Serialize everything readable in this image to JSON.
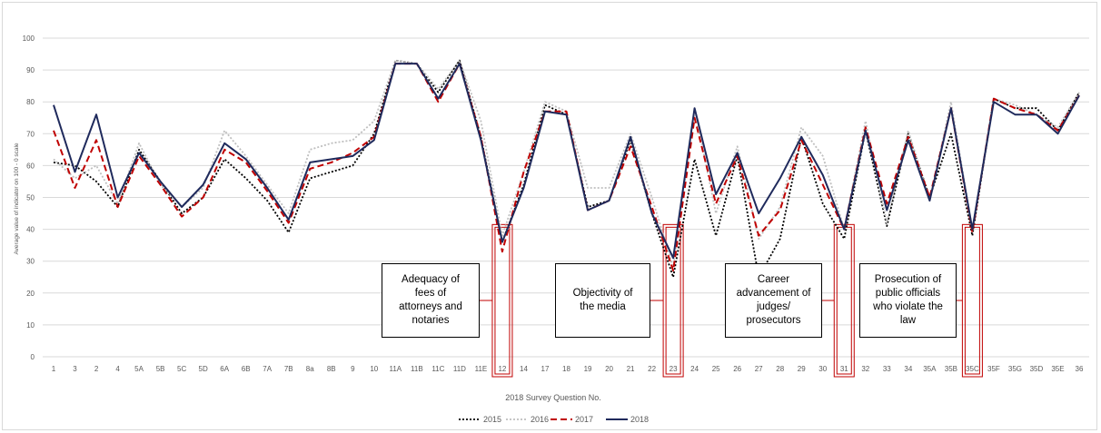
{
  "chart_data": {
    "type": "line",
    "title": "",
    "xlabel": "2018 Survey Question No.",
    "ylabel": "Average value of indicator on 100 - 0 scale",
    "ylim": [
      0,
      100
    ],
    "yticks": [
      0,
      10,
      20,
      30,
      40,
      50,
      60,
      70,
      80,
      90,
      100
    ],
    "grid": "horizontal",
    "legend_position": "bottom",
    "categories": [
      "1",
      "3",
      "2",
      "4",
      "5A",
      "5B",
      "5C",
      "5D",
      "6A",
      "6B",
      "7A",
      "7B",
      "8a",
      "8B",
      "9",
      "10",
      "11A",
      "11B",
      "11C",
      "11D",
      "11E",
      "12",
      "14",
      "17",
      "18",
      "19",
      "20",
      "21",
      "22",
      "23",
      "24",
      "25",
      "26",
      "27",
      "28",
      "29",
      "30",
      "31",
      "32",
      "33",
      "34",
      "35A",
      "35B",
      "35C",
      "35F",
      "35G",
      "35D",
      "35E",
      "36"
    ],
    "series": [
      {
        "name": "2015",
        "color": "#000000",
        "style": "dotted",
        "values": [
          61,
          60,
          55,
          47,
          65,
          55,
          45,
          50,
          62,
          56,
          49,
          39,
          56,
          58,
          60,
          70,
          93,
          92,
          83,
          93,
          69,
          36,
          54,
          79,
          76,
          47,
          49,
          68,
          45,
          25,
          62,
          38,
          63,
          25,
          37,
          69,
          48,
          37,
          71,
          41,
          70,
          50,
          70,
          38,
          81,
          78,
          78,
          71,
          83
        ]
      },
      {
        "name": "2016",
        "color": "#bfbfbf",
        "style": "dotted",
        "values": [
          62,
          56,
          60,
          48,
          67,
          54,
          47,
          53,
          71,
          63,
          54,
          45,
          65,
          67,
          68,
          74,
          93,
          92,
          84,
          93,
          74,
          38,
          58,
          80,
          77,
          53,
          53,
          70,
          50,
          28,
          78,
          45,
          66,
          37,
          47,
          72,
          63,
          40,
          74,
          42,
          71,
          49,
          80,
          40,
          81,
          79,
          76,
          72,
          83
        ]
      },
      {
        "name": "2017",
        "color": "#c00000",
        "style": "dashed",
        "values": [
          71,
          53,
          68,
          47,
          63,
          54,
          44,
          50,
          65,
          61,
          52,
          42,
          59,
          61,
          64,
          69,
          92,
          92,
          80,
          92,
          69,
          33,
          58,
          77,
          77,
          46,
          49,
          66,
          47,
          27,
          75,
          48,
          63,
          38,
          46,
          68,
          54,
          40,
          72,
          48,
          69,
          50,
          78,
          39,
          81,
          78,
          76,
          71,
          82
        ]
      },
      {
        "name": "2018",
        "color": "#1f2a5c",
        "style": "solid",
        "values": [
          79,
          58,
          76,
          50,
          64,
          55,
          47,
          54,
          67,
          62,
          53,
          43,
          61,
          62,
          63,
          68,
          92,
          92,
          81,
          92,
          68,
          36,
          53,
          77,
          76,
          46,
          49,
          69,
          45,
          31,
          78,
          51,
          64,
          45,
          56,
          69,
          57,
          40,
          71,
          46,
          68,
          49,
          78,
          40,
          80,
          76,
          76,
          70,
          82
        ]
      }
    ],
    "highlighted_categories": [
      "12",
      "23",
      "31",
      "35C"
    ],
    "annotations": [
      {
        "text_lines": [
          "Adequacy of",
          "fees of",
          "attorneys and",
          "notaries"
        ],
        "category": "12"
      },
      {
        "text_lines": [
          "Objectivity of",
          "the media"
        ],
        "category": "23"
      },
      {
        "text_lines": [
          "Career",
          "advancement of",
          "judges/",
          "prosecutors"
        ],
        "category": "31"
      },
      {
        "text_lines": [
          "Prosecution of",
          "public officials",
          "who violate the",
          "law"
        ],
        "category": "35C"
      }
    ]
  }
}
